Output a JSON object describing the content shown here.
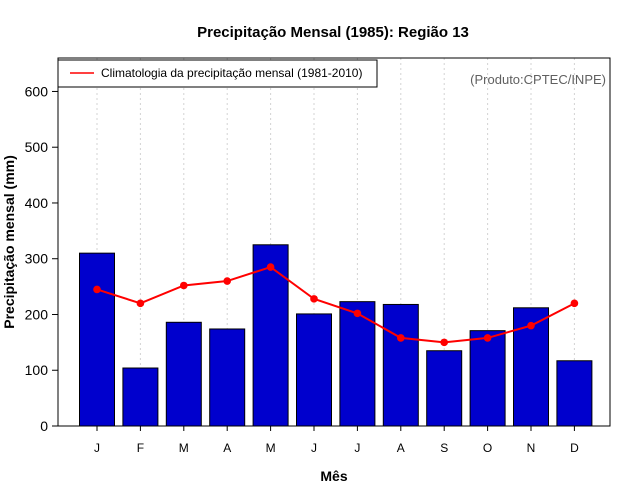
{
  "chart_data": {
    "type": "bar",
    "title": "Precipitação Mensal (1985): Região 13",
    "xlabel": "Mês",
    "ylabel": "Precipitação mensal (mm)",
    "categories": [
      "J",
      "F",
      "M",
      "A",
      "M",
      "J",
      "J",
      "A",
      "S",
      "O",
      "N",
      "D"
    ],
    "series": [
      {
        "name": "Precipitação mensal (1985)",
        "type": "bar",
        "color": "#0000CD",
        "values": [
          310,
          104,
          186,
          174,
          325,
          201,
          223,
          218,
          135,
          171,
          212,
          117
        ]
      },
      {
        "name": "Climatologia da precipitação mensal (1981-2010)",
        "type": "line",
        "color": "#FF0000",
        "values": [
          245,
          220,
          252,
          260,
          285,
          228,
          202,
          158,
          150,
          158,
          180,
          220
        ]
      }
    ],
    "ylim": [
      0,
      660
    ],
    "yticks": [
      0,
      100,
      200,
      300,
      400,
      500,
      600
    ],
    "grid": "vertical dashed",
    "legend": {
      "entries": [
        "Climatologia da precipitação mensal (1981-2010)"
      ],
      "placement": "top-left"
    },
    "annotation": "(Produto:CPTEC/INPE)"
  }
}
